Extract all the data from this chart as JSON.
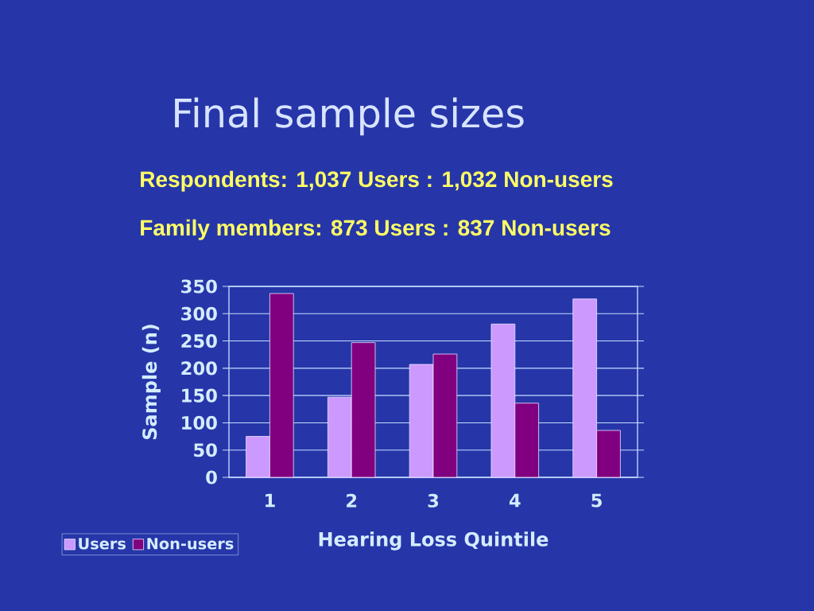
{
  "chart_data": {
    "type": "bar",
    "title": "Final sample sizes",
    "annotations": [
      "Respondents: 1,037 Users : 1,032 Non-users",
      "Family members: 873 Users : 837 Non-users"
    ],
    "xlabel": "Hearing Loss Quintile",
    "ylabel": "Sample (n)",
    "categories": [
      "1",
      "2",
      "3",
      "4",
      "5"
    ],
    "series": [
      {
        "name": "Users",
        "color": "#cc99ff",
        "values": [
          75,
          147,
          207,
          281,
          327
        ]
      },
      {
        "name": "Non-users",
        "color": "#800080",
        "values": [
          337,
          247,
          226,
          136,
          86
        ]
      }
    ],
    "ylim": [
      0,
      350
    ],
    "yticks": [
      0,
      50,
      100,
      150,
      200,
      250,
      300,
      350
    ],
    "grid": "y",
    "legend": "bottom left"
  }
}
